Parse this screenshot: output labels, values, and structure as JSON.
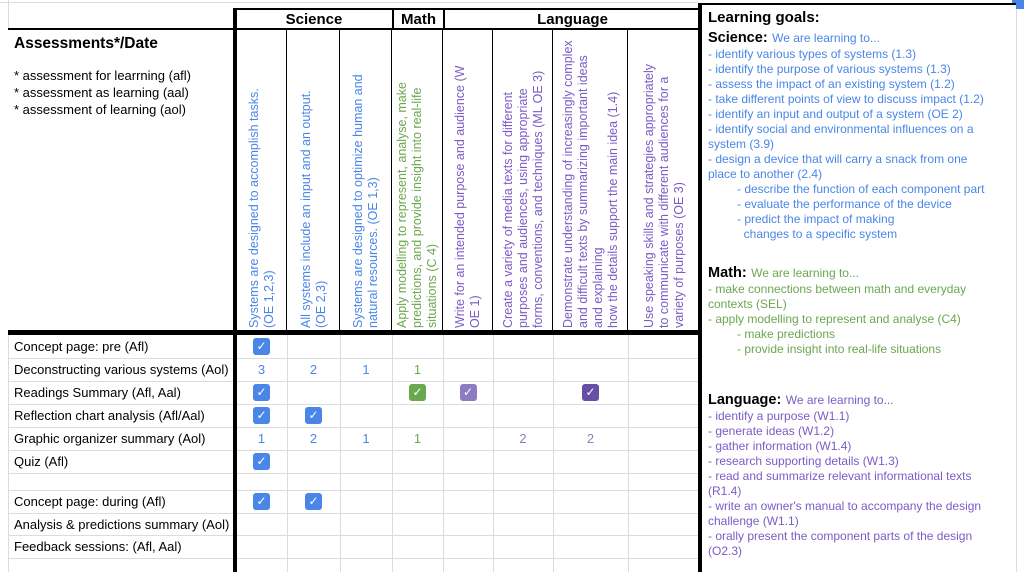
{
  "colors": {
    "blue": "#4a86e8",
    "green": "#6aa84f",
    "purple": "#7a5cc5",
    "lightpurple": "#8e7cc3",
    "darkpurple": "#674ea7",
    "marker_blue": "#4a86e8"
  },
  "icons": {
    "check": "✓"
  },
  "table": {
    "corner": {
      "title": "Assessments*/Date",
      "notes": [
        "* assessment for learrning (afl)",
        "* assessment as learning (aal)",
        "* assessment of learning (aol)"
      ]
    },
    "groups": [
      {
        "label": "Science"
      },
      {
        "label": "Math"
      },
      {
        "label": "Language"
      }
    ],
    "columns": [
      {
        "color": "blue",
        "label": "Systems are designed to accomplish tasks.\n(OE 1,2,3)"
      },
      {
        "color": "blue",
        "label": "All systems include an input and an output.\n(OE 2,3)"
      },
      {
        "color": "blue",
        "label": "Systems are designed to optimize human and\nnatural resources. (OE 1,3)"
      },
      {
        "color": "green",
        "label": "Apply modelling to represent, analyse, make\npredictions, and provide insight into real-life\nsituations (C 4)"
      },
      {
        "color": "purple",
        "label": "Write for an intended purpose and audience (W\nOE 1)"
      },
      {
        "color": "purple",
        "label": "Create a variety of media texts for different\npurposes and audiences, using appropriate\nforms, conventions, and techniques (ML OE 3)"
      },
      {
        "color": "purple",
        "label": "Demonstrate understanding of increasingly complex\nand difficult texts by summarizing important ideas\nand explaining\nhow the details support the main idea (1.4)"
      },
      {
        "color": "purple",
        "label": "Use speaking skills and strategies appropriately\nto communicate with different audiences for a\nvariety of purposes (OE 3)"
      }
    ],
    "rows": [
      {
        "label": "Concept page: pre (Afl)",
        "cells": {
          "0": {
            "check": "blue"
          }
        }
      },
      {
        "label": "Deconstructing various systems (Aol)",
        "cells": {
          "0": {
            "num": "3",
            "color": "blue"
          },
          "1": {
            "num": "2",
            "color": "blue"
          },
          "2": {
            "num": "1",
            "color": "blue"
          },
          "3": {
            "num": "1",
            "color": "green"
          }
        }
      },
      {
        "label": "Readings Summary (Afl, Aal)",
        "cells": {
          "0": {
            "check": "blue"
          },
          "3": {
            "check": "green"
          },
          "4": {
            "check": "lightpurple"
          },
          "6": {
            "check": "darkpurple"
          }
        }
      },
      {
        "label": "Reflection chart analysis (Afl/Aal)",
        "cells": {
          "0": {
            "check": "blue"
          },
          "1": {
            "check": "blue"
          }
        }
      },
      {
        "label": "Graphic organizer summary (Aol)",
        "cells": {
          "0": {
            "num": "1",
            "color": "blue"
          },
          "1": {
            "num": "2",
            "color": "blue"
          },
          "2": {
            "num": "1",
            "color": "blue"
          },
          "3": {
            "num": "1",
            "color": "green"
          },
          "5": {
            "num": "2",
            "color": "lightpurple"
          },
          "6": {
            "num": "2",
            "color": "lightpurple"
          }
        }
      },
      {
        "label": "Quiz (Afl)",
        "cells": {
          "0": {
            "check": "blue"
          }
        }
      },
      {
        "label": "",
        "cells": {}
      },
      {
        "label": "Concept page: during (Afl)",
        "cells": {
          "0": {
            "check": "blue"
          },
          "1": {
            "check": "blue"
          }
        }
      },
      {
        "label": "Analysis & predictions summary (Aol)",
        "cells": {}
      },
      {
        "label": "Feedback sessions: (Afl, Aal)",
        "cells": {}
      }
    ]
  },
  "goals": {
    "title": "Learning goals:",
    "sections": [
      {
        "subject": "Science:",
        "intro": "We are learning to...",
        "color": "blue",
        "items": [
          {
            "lvl": 0,
            "text": "- identify various types of systems (1.3)"
          },
          {
            "lvl": 0,
            "text": "- identify the purpose of various systems (1.3)"
          },
          {
            "lvl": 0,
            "text": "- assess the impact of an existing system (1.2)"
          },
          {
            "lvl": 0,
            "text": "- take different points of view to discuss impact (1.2)"
          },
          {
            "lvl": 0,
            "text": "- identify an input and output of a system (OE 2)"
          },
          {
            "lvl": 0,
            "text": "- identify social and environmental influences on a\nsystem (3.9)"
          },
          {
            "lvl": 0,
            "text": "- design a device that will carry a snack from one\nplace to another (2.4)"
          },
          {
            "lvl": 1,
            "text": "- describe the function of each component part"
          },
          {
            "lvl": 1,
            "text": "- evaluate the performance of the device"
          },
          {
            "lvl": 1,
            "text": "- predict the impact of making\n  changes to a specific system"
          }
        ]
      },
      {
        "subject": "Math:",
        "intro": "We are learning to...",
        "color": "green",
        "items": [
          {
            "lvl": 0,
            "text": "- make connections between math and everyday\ncontexts (SEL)"
          },
          {
            "lvl": 0,
            "text": "- apply modelling to represent and analyse (C4)"
          },
          {
            "lvl": 1,
            "text": "- make predictions"
          },
          {
            "lvl": 1,
            "text": "- provide insight into real-life situations"
          }
        ]
      },
      {
        "subject": "Language:",
        "intro": "We are learning to...",
        "color": "purple",
        "items": [
          {
            "lvl": 0,
            "text": "- identify a purpose (W1.1)"
          },
          {
            "lvl": 0,
            "text": "- generate ideas (W1.2)"
          },
          {
            "lvl": 0,
            "text": "- gather information (W1.4)"
          },
          {
            "lvl": 0,
            "text": "- research supporting details (W1.3)"
          },
          {
            "lvl": 0,
            "text": "- read and summarize relevant informational texts\n(R1.4)"
          },
          {
            "lvl": 0,
            "text": "- write an owner's manual to accompany the design\nchallenge (W1.1)"
          },
          {
            "lvl": 0,
            "text": "- orally present the component parts of the design\n(O2.3)"
          }
        ]
      }
    ]
  }
}
